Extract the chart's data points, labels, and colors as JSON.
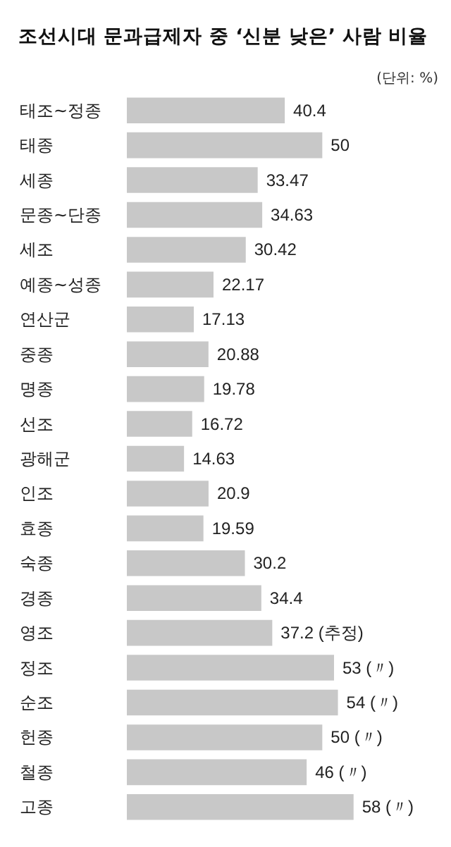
{
  "chart_data": {
    "type": "bar",
    "orientation": "horizontal",
    "title": "조선시대 문과급제자 중 ‘신분 낮은’ 사람 비율",
    "subtitle": "(단위: %)",
    "categories": [
      "태조~정종",
      "태종",
      "세종",
      "문종~단종",
      "세조",
      "예종~성종",
      "연산군",
      "중종",
      "명종",
      "선조",
      "광해군",
      "인조",
      "효종",
      "숙종",
      "경종",
      "영조",
      "정조",
      "순조",
      "헌종",
      "철종",
      "고종"
    ],
    "values": [
      40.4,
      50,
      33.47,
      34.63,
      30.42,
      22.17,
      17.13,
      20.88,
      19.78,
      16.72,
      14.63,
      20.9,
      19.59,
      30.2,
      34.4,
      37.2,
      53,
      54,
      50,
      46,
      58
    ],
    "value_labels": [
      "40.4",
      "50",
      "33.47",
      "34.63",
      "30.42",
      "22.17",
      "17.13",
      "20.88",
      "19.78",
      "16.72",
      "14.63",
      "20.9",
      "19.59",
      "30.2",
      "34.4",
      "37.2 (추정)",
      "53 (〃)",
      "54 (〃)",
      "50 (〃)",
      "46 (〃)",
      "58 (〃)"
    ],
    "color": "#c8c8c8"
  }
}
